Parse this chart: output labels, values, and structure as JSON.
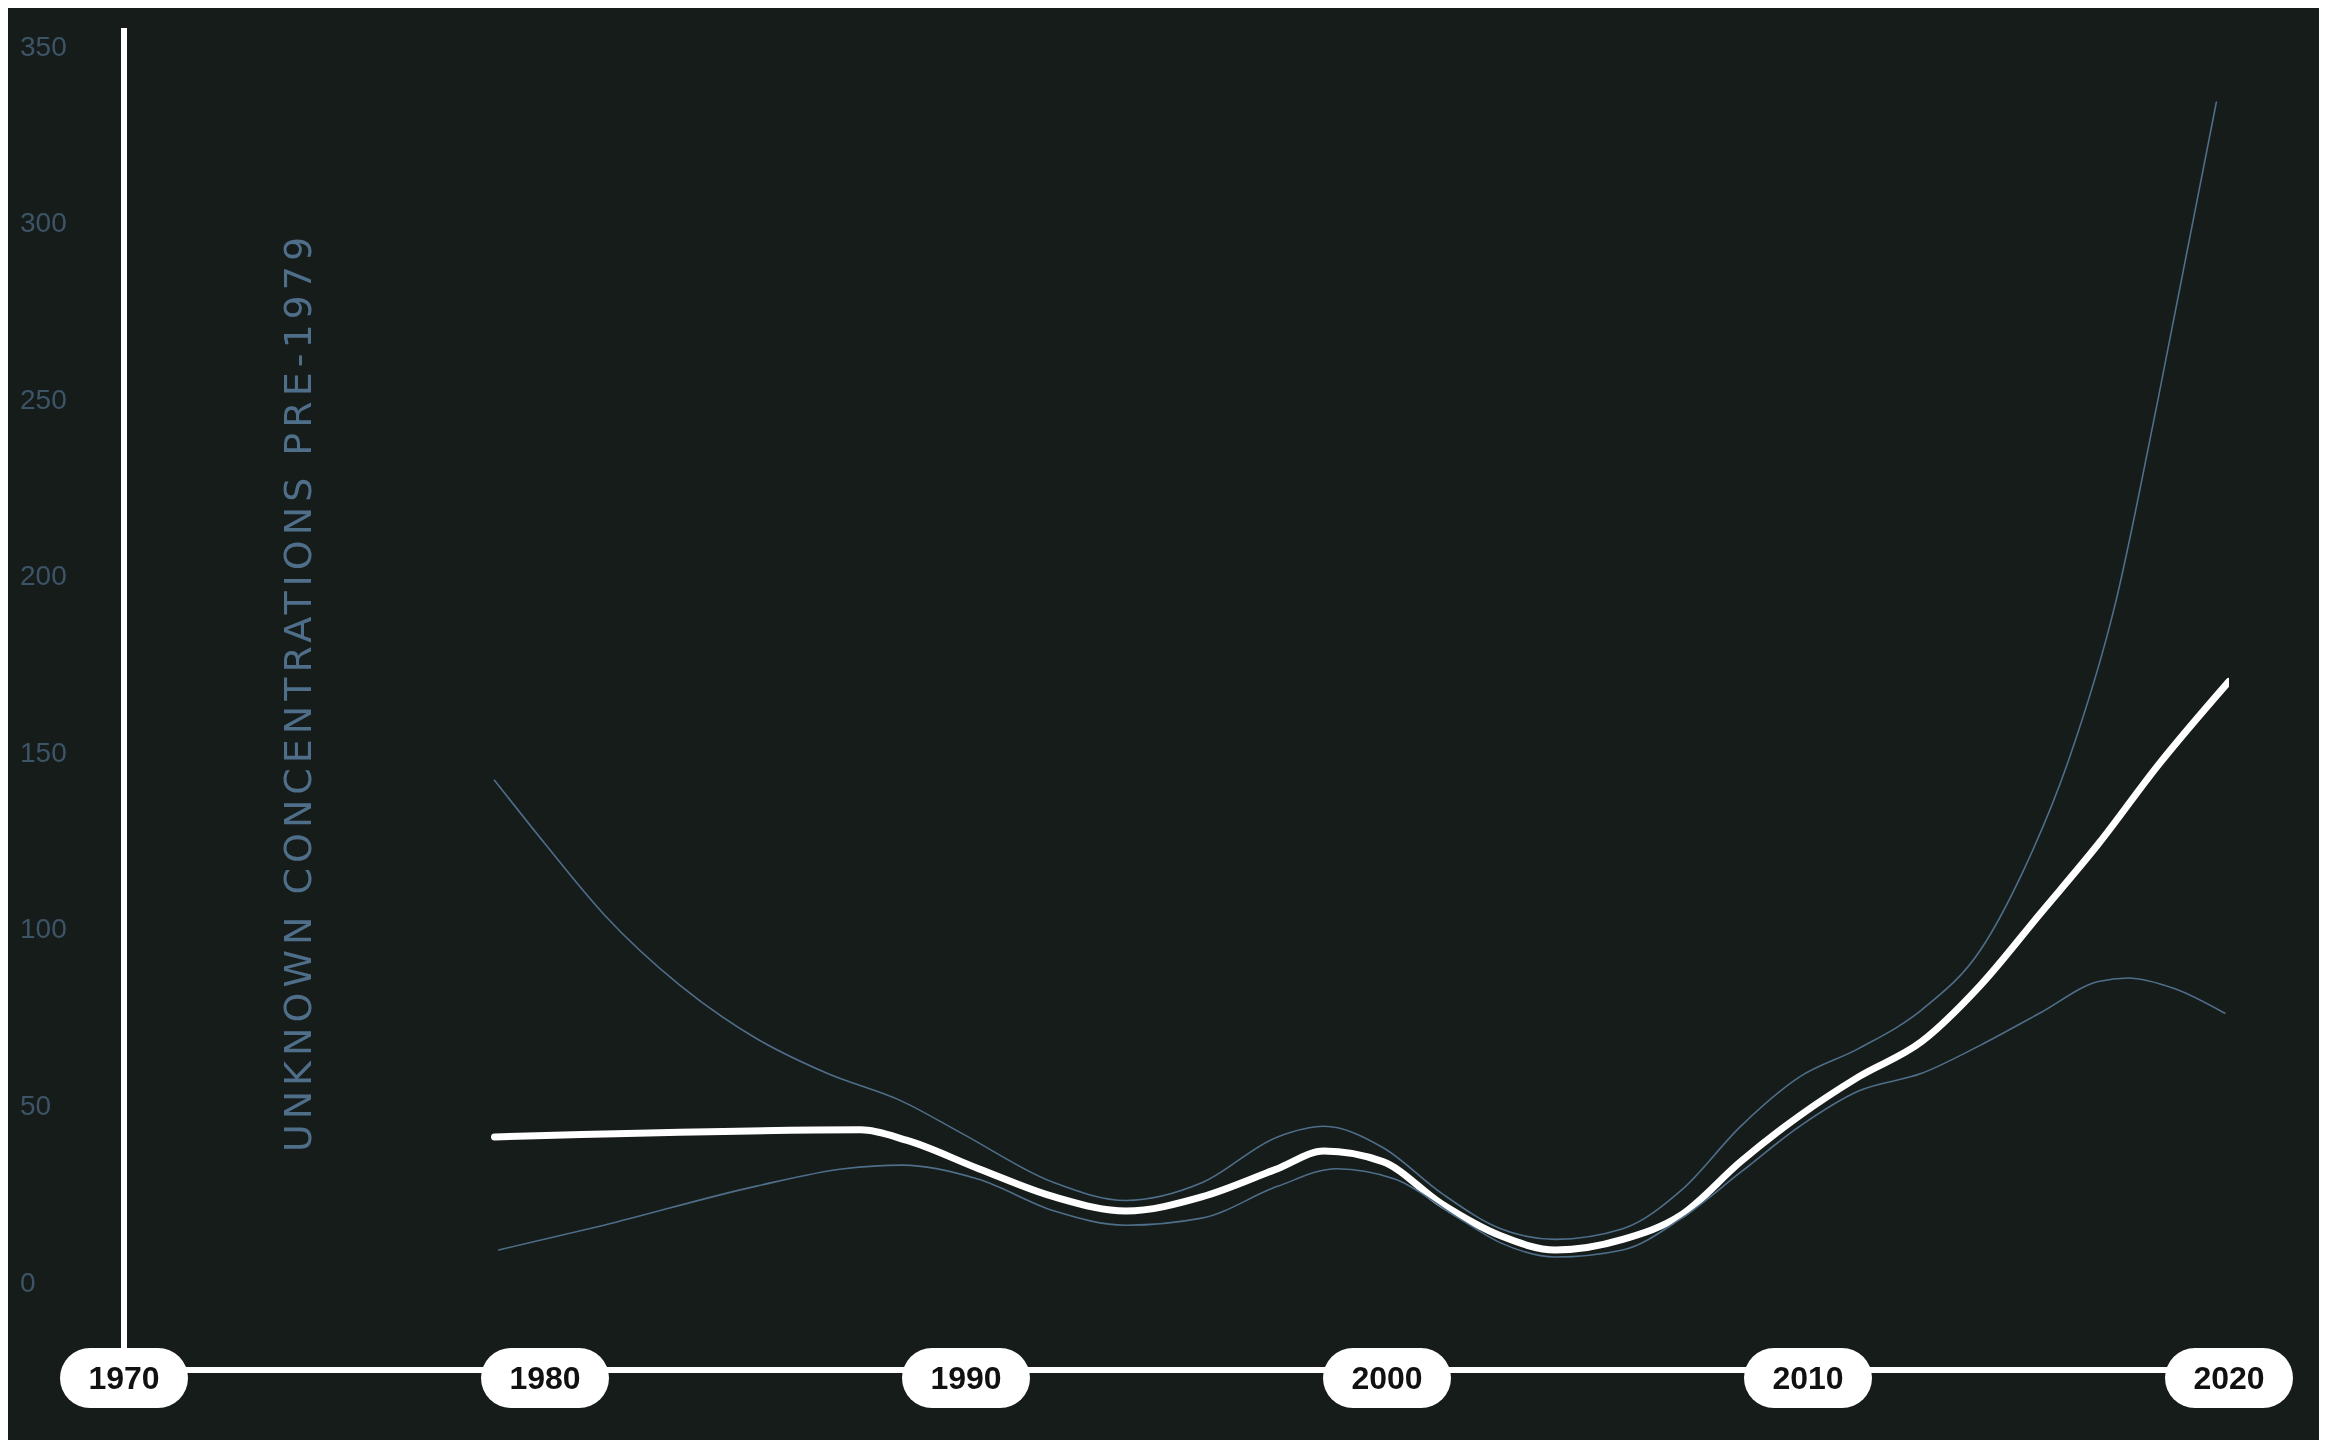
{
  "chart_data": {
    "type": "line",
    "annotations": [
      "UNKNOWN CONCENTRATIONS PRE-1979"
    ],
    "xlim": [
      1970,
      2020
    ],
    "xticks": [
      1970,
      1980,
      1990,
      2000,
      2010,
      2020
    ],
    "ylim": [
      -25,
      355
    ],
    "yticks": [
      0,
      50,
      100,
      150,
      200,
      250,
      300,
      350
    ],
    "marker": "none",
    "series": [
      {
        "color": "#ffffff",
        "x": [
          1978.8,
          1987.5,
          1988.6,
          1990.3,
          1992.1,
          1993.8,
          1995.6,
          1997.4,
          1998.5,
          1999.9,
          2001.3,
          2002.7,
          2004,
          2005.6,
          2007,
          2008.4,
          2009.8,
          2011.2,
          2012.7,
          2014.1,
          2015.5,
          2016.9,
          2018.3,
          2020
        ],
        "values": [
          41,
          43,
          40,
          32,
          24,
          20,
          24,
          32,
          37,
          34,
          22,
          13,
          9,
          12,
          19,
          34,
          47,
          58,
          68,
          84,
          104,
          124,
          146,
          170
        ]
      },
      {
        "color": "#4f6e8a",
        "x": [
          1978.8,
          1980,
          1981.4,
          1983.2,
          1985,
          1986.7,
          1988.5,
          1989.9,
          1992.1,
          1993.8,
          1995.6,
          1997.4,
          1998.5,
          1999.9,
          2001.3,
          2002.7,
          2004,
          2005.6,
          2007,
          2008.4,
          2009.8,
          2011.2,
          2012.7,
          2014.1,
          2015.1,
          2016.2,
          2017.3,
          2018.3,
          2019.7
        ],
        "values": [
          142,
          124,
          104,
          84,
          69,
          59,
          51,
          42,
          28,
          23,
          28,
          41,
          44,
          38,
          25,
          15,
          12,
          15,
          26,
          44,
          58,
          66,
          77,
          94,
          116,
          148,
          192,
          249,
          334
        ]
      },
      {
        "color": "#4f6e8a",
        "x": [
          1978.9,
          1981.4,
          1985,
          1987.1,
          1988.5,
          1990.3,
          1992.1,
          1993.8,
          1995.6,
          1997.4,
          1998.8,
          2000.2,
          2001.7,
          2002.7,
          2004,
          2005.6,
          2007,
          2008.4,
          2009.8,
          2011.2,
          2012.7,
          2014.1,
          2015.5,
          2016.9,
          2017.6,
          2018.7,
          2019.9
        ],
        "values": [
          9,
          16,
          27,
          32,
          33,
          29,
          20,
          16,
          18,
          27,
          32,
          29,
          18,
          11,
          7,
          9,
          18,
          31,
          44,
          54,
          59,
          67,
          76,
          85,
          86,
          83,
          76
        ]
      }
    ]
  }
}
